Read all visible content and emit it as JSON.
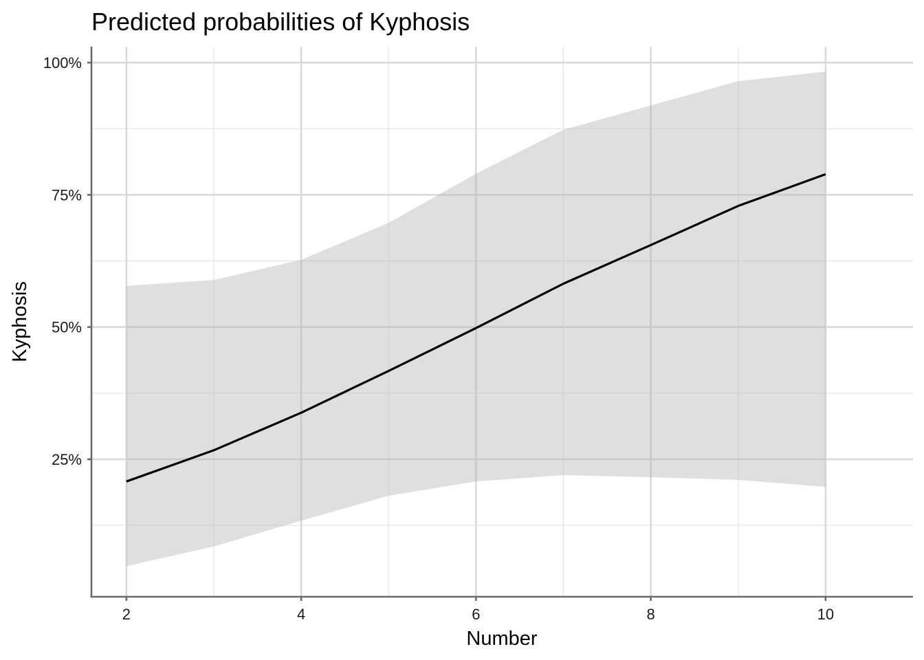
{
  "chart_data": {
    "type": "line",
    "title": "Predicted probabilities of Kyphosis",
    "xlabel": "Number",
    "ylabel": "Kyphosis",
    "x": [
      2,
      3,
      4,
      5,
      6,
      7,
      8,
      9,
      10
    ],
    "series": [
      {
        "values": [
          0.208,
          0.267,
          0.338,
          0.417,
          0.498,
          0.582,
          0.655,
          0.729,
          0.789
        ],
        "ci_low": [
          0.048,
          0.085,
          0.134,
          0.181,
          0.208,
          0.22,
          0.216,
          0.211,
          0.198
        ],
        "ci_high": [
          0.578,
          0.589,
          0.627,
          0.697,
          0.79,
          0.873,
          0.919,
          0.965,
          0.983
        ]
      }
    ],
    "xlim": [
      1.6,
      11.0
    ],
    "ylim": [
      -0.01,
      1.03
    ],
    "x_ticks": [
      2,
      4,
      6,
      8,
      10
    ],
    "x_tick_labels": [
      "2",
      "4",
      "6",
      "8",
      "10"
    ],
    "y_ticks": [
      0.25,
      0.5,
      0.75,
      1.0
    ],
    "y_tick_labels": [
      "25%",
      "50%",
      "75%",
      "100%"
    ],
    "x_minor_ticks": [
      3,
      5,
      7,
      9
    ],
    "y_minor_ticks": [
      0.125,
      0.375,
      0.625,
      0.875
    ],
    "grid": true,
    "legend": "none",
    "colors": {
      "line": "#000000",
      "ribbon": "#b3b3b3",
      "grid": "#d9d9d9",
      "axis": "#6a6a6a"
    }
  }
}
